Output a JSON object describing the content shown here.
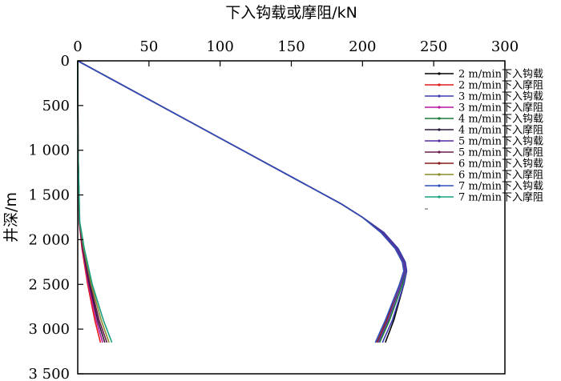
{
  "chart_data": {
    "type": "line",
    "xlabel": "下入钩载或摩阻/kN",
    "ylabel": "井深/m",
    "xlim": [
      0,
      300
    ],
    "ylim": [
      0,
      3500
    ],
    "y_inverted": true,
    "x_axis_position": "top",
    "grid": false,
    "legend_position": "right",
    "x_ticks": [
      "0",
      "50",
      "100",
      "150",
      "200",
      "250",
      "300"
    ],
    "y_ticks": [
      "0",
      "500",
      "1 000",
      "1 500",
      "2 000",
      "2 500",
      "3 000",
      "3 500"
    ],
    "series": [
      {
        "name": "2 m/min下入钩载",
        "color": "#000000",
        "x": [
          0,
          185,
          200,
          215,
          225,
          230,
          231,
          229,
          222,
          216
        ],
        "y": [
          0,
          1600,
          1750,
          1920,
          2100,
          2250,
          2350,
          2500,
          2900,
          3150
        ]
      },
      {
        "name": "2 m/min下入摩阻",
        "color": "#e41a1c",
        "x": [
          0,
          0.2,
          1,
          3,
          7,
          12,
          16
        ],
        "y": [
          0,
          1000,
          1800,
          2100,
          2500,
          2900,
          3150
        ]
      },
      {
        "name": "3 m/min下入钩载",
        "color": "#3b3bb3",
        "x": [
          0,
          185,
          200,
          215,
          225,
          230,
          231,
          229,
          221,
          214
        ],
        "y": [
          0,
          1600,
          1750,
          1920,
          2100,
          2250,
          2350,
          2500,
          2900,
          3150
        ]
      },
      {
        "name": "3 m/min下入摩阻",
        "color": "#b5179e",
        "x": [
          0,
          0.2,
          1,
          3.3,
          7.6,
          13,
          17.5
        ],
        "y": [
          0,
          1000,
          1800,
          2100,
          2500,
          2900,
          3150
        ]
      },
      {
        "name": "4 m/min下入钩载",
        "color": "#1b7a3a",
        "x": [
          0,
          185,
          200,
          214,
          224,
          229,
          230,
          228,
          219,
          212
        ],
        "y": [
          0,
          1600,
          1750,
          1920,
          2100,
          2250,
          2350,
          2500,
          2900,
          3150
        ]
      },
      {
        "name": "4 m/min下入摩阻",
        "color": "#2a1a3a",
        "x": [
          0,
          0.2,
          1.1,
          3.6,
          8.2,
          14,
          19
        ],
        "y": [
          0,
          1000,
          1800,
          2100,
          2500,
          2900,
          3150
        ]
      },
      {
        "name": "5 m/min下入钩载",
        "color": "#5a2ca0",
        "x": [
          0,
          185,
          200,
          214,
          224,
          229,
          230,
          227,
          218,
          211
        ],
        "y": [
          0,
          1600,
          1750,
          1920,
          2100,
          2250,
          2350,
          2500,
          2900,
          3150
        ]
      },
      {
        "name": "5 m/min下入摩阻",
        "color": "#6a1b4d",
        "x": [
          0,
          0.2,
          1.2,
          3.9,
          8.8,
          15,
          20.5
        ],
        "y": [
          0,
          1000,
          1800,
          2100,
          2500,
          2900,
          3150
        ]
      },
      {
        "name": "6 m/min下入钩载",
        "color": "#8b1a1a",
        "x": [
          0,
          185,
          200,
          213,
          223,
          228,
          229,
          226,
          217,
          210
        ],
        "y": [
          0,
          1600,
          1750,
          1920,
          2100,
          2250,
          2350,
          2500,
          2900,
          3150
        ]
      },
      {
        "name": "6 m/min下入摩阻",
        "color": "#8b8b2a",
        "x": [
          0,
          0.2,
          1.3,
          4.2,
          9.5,
          16.5,
          22
        ],
        "y": [
          0,
          1000,
          1800,
          2100,
          2500,
          2900,
          3150
        ]
      },
      {
        "name": "7 m/min下入钩载",
        "color": "#2f4fbf",
        "x": [
          0,
          185,
          200,
          213,
          223,
          228,
          229,
          226,
          216,
          209
        ],
        "y": [
          0,
          1600,
          1750,
          1920,
          2100,
          2250,
          2350,
          2500,
          2900,
          3150
        ]
      },
      {
        "name": "7 m/min下入摩阻",
        "color": "#1aa080",
        "x": [
          0,
          0.2,
          1.4,
          4.6,
          10.2,
          18,
          24
        ],
        "y": [
          0,
          1000,
          1800,
          2100,
          2500,
          2900,
          3150
        ]
      }
    ]
  }
}
